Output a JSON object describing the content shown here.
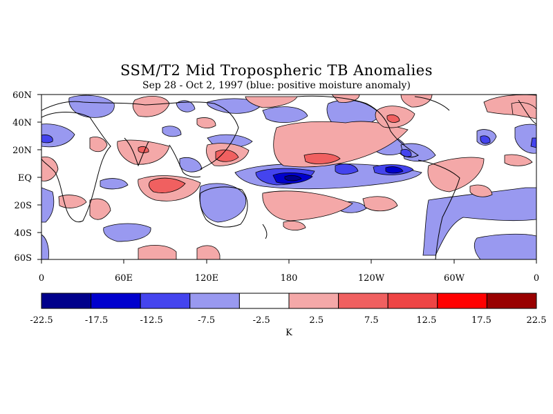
{
  "title": "SSM/T2 Mid Tropospheric TB Anomalies",
  "subtitle": "Sep 28 - Oct 2, 1997 (blue: positive moisture anomaly)",
  "lat_labels": [
    "60N",
    "40N",
    "20N",
    "EQ",
    "20S",
    "40S",
    "60S"
  ],
  "lon_labels": [
    "0",
    "60E",
    "120E",
    "180",
    "120W",
    "60W",
    "0"
  ],
  "colorbar": {
    "unit": "K",
    "tick_labels": [
      "-22.5",
      "-17.5",
      "-12.5",
      "-7.5",
      "-2.5",
      "2.5",
      "7.5",
      "12.5",
      "17.5",
      "22.5"
    ],
    "colors": [
      "#00008b",
      "#0000cd",
      "#4444ee",
      "#9999f0",
      "#ffffff",
      "#f4a8a8",
      "#f06060",
      "#ee4444",
      "#ff0000",
      "#990000"
    ]
  },
  "anomaly_regions": [
    {
      "sign": "negative",
      "level": -12.5,
      "where": "central Pacific near equator, 180"
    },
    {
      "sign": "negative",
      "level": -7.5,
      "where": "eastern equatorial Pacific"
    },
    {
      "sign": "positive",
      "level": 7.5,
      "where": "Bay of Bengal / eastern Indian Ocean"
    },
    {
      "sign": "positive",
      "level": 7.5,
      "where": "north Pacific 15-25N"
    },
    {
      "sign": "positive",
      "level": 2.5,
      "where": "south Pacific subtropics"
    },
    {
      "sign": "negative",
      "level": -2.5,
      "where": "Australia and southwest Pacific"
    }
  ]
}
